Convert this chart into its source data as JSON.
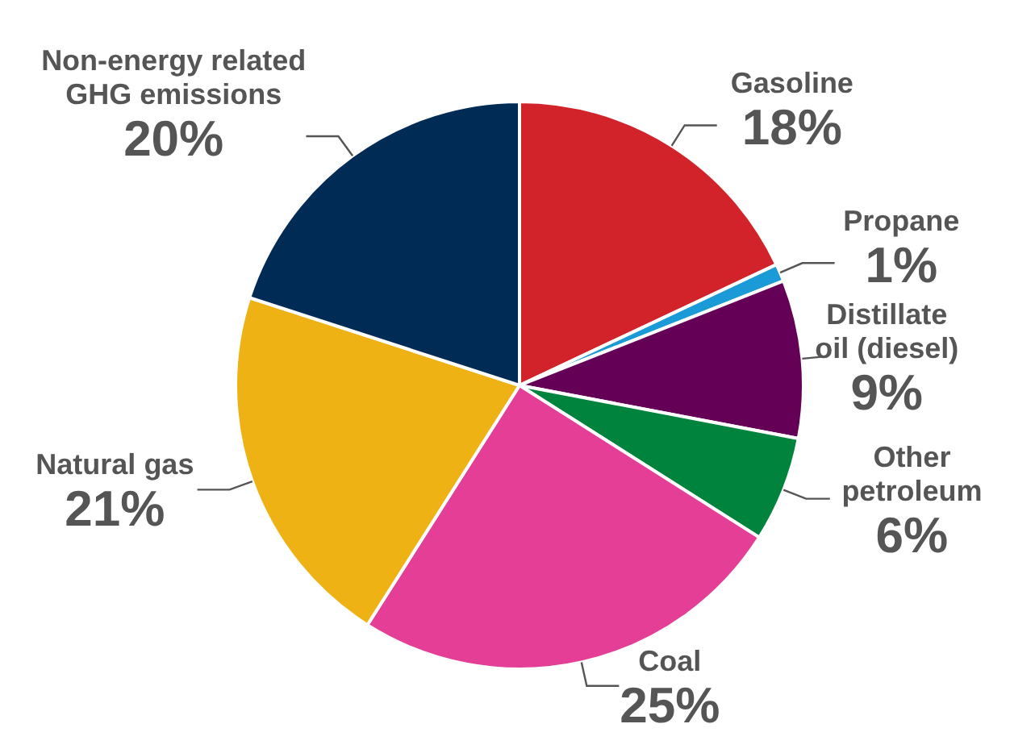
{
  "chart_data": {
    "type": "pie",
    "categories": [
      "Gasoline",
      "Propane",
      "Distillate\noil (diesel)",
      "Other\npetroleum",
      "Coal",
      "Natural gas",
      "Non-energy related\nGHG emissions"
    ],
    "values": [
      18,
      1,
      9,
      6,
      25,
      21,
      20
    ],
    "value_labels": [
      "18%",
      "1%",
      "9%",
      "6%",
      "25%",
      "21%",
      "20%"
    ],
    "colors": [
      "#d2232a",
      "#1a9ad6",
      "#650057",
      "#00843d",
      "#e53e96",
      "#efb215",
      "#002b54"
    ]
  }
}
